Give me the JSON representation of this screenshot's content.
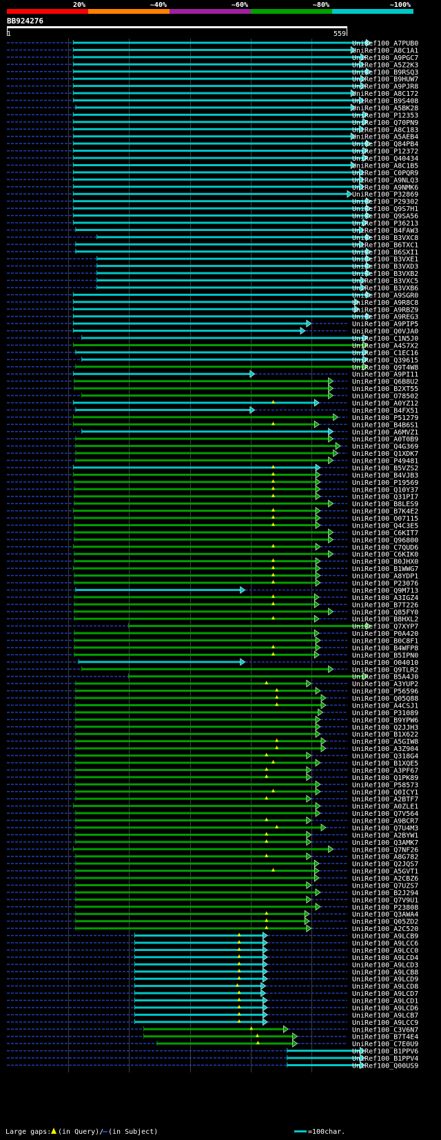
{
  "chart_data": {
    "type": "blast-alignment-overview",
    "query_name": "BB924276",
    "query_start": "1",
    "query_end": "559",
    "query_length": 559,
    "x_range": [
      1,
      559
    ],
    "identity_scale": [
      {
        "label": "20%",
        "color": "#ff0000"
      },
      {
        "label": "~40%",
        "color": "#ff8000"
      },
      {
        "label": "~60%",
        "color": "#a020a0"
      },
      {
        "label": "~80%",
        "color": "#00a000"
      },
      {
        "label": "~100%",
        "color": "#00c8c8"
      }
    ],
    "colors": {
      "background": "#000000",
      "cyan": "#00c8c8",
      "green": "#00a000",
      "dash": "#2040c0",
      "grid": "#404040",
      "gap": "#f0f000"
    },
    "legend": {
      "gaps_prefix": "Large gaps: ",
      "gaps_query": "(in Query)/",
      "gaps_subject": " (in Subject)",
      "scale_label": "=100char."
    },
    "hits": [
      {
        "name": "UniRef100_A7PUB0",
        "start": 108,
        "end": 591,
        "color": "cyan"
      },
      {
        "name": "UniRef100_A8C1A1",
        "start": 108,
        "end": 566,
        "color": "cyan"
      },
      {
        "name": "UniRef100_A9PGC7",
        "start": 108,
        "end": 582,
        "color": "cyan"
      },
      {
        "name": "UniRef100_A5Z2K3",
        "start": 108,
        "end": 580,
        "color": "cyan"
      },
      {
        "name": "UniRef100_B9RSQ3",
        "start": 108,
        "end": 591,
        "color": "cyan"
      },
      {
        "name": "UniRef100_B9HUW7",
        "start": 108,
        "end": 582,
        "color": "cyan"
      },
      {
        "name": "UniRef100_A9PJR8",
        "start": 108,
        "end": 582,
        "color": "cyan"
      },
      {
        "name": "UniRef100_A8C172",
        "start": 108,
        "end": 566,
        "color": "cyan"
      },
      {
        "name": "UniRef100_B9S408",
        "start": 108,
        "end": 580,
        "color": "cyan"
      },
      {
        "name": "UniRef100_A5BK28",
        "start": 112,
        "end": 566,
        "color": "cyan"
      },
      {
        "name": "UniRef100_P12353",
        "start": 108,
        "end": 586,
        "color": "cyan"
      },
      {
        "name": "UniRef100_Q70PN9",
        "start": 108,
        "end": 586,
        "color": "cyan"
      },
      {
        "name": "UniRef100_A8C183",
        "start": 108,
        "end": 580,
        "color": "cyan"
      },
      {
        "name": "UniRef100_A5AEB4",
        "start": 108,
        "end": 566,
        "color": "cyan"
      },
      {
        "name": "UniRef100_Q84PB4",
        "start": 108,
        "end": 591,
        "color": "cyan"
      },
      {
        "name": "UniRef100_P12372",
        "start": 108,
        "end": 586,
        "color": "cyan"
      },
      {
        "name": "UniRef100_Q40434",
        "start": 108,
        "end": 586,
        "color": "cyan"
      },
      {
        "name": "UniRef100_A8C1B5",
        "start": 108,
        "end": 566,
        "color": "cyan"
      },
      {
        "name": "UniRef100_C0PQR9",
        "start": 108,
        "end": 580,
        "color": "cyan"
      },
      {
        "name": "UniRef100_A9NLQ3",
        "start": 108,
        "end": 580,
        "color": "cyan"
      },
      {
        "name": "UniRef100_A9NMK6",
        "start": 108,
        "end": 580,
        "color": "cyan"
      },
      {
        "name": "UniRef100_P32869",
        "start": 108,
        "end": 560,
        "color": "cyan"
      },
      {
        "name": "UniRef100_P29302",
        "start": 108,
        "end": 591,
        "color": "cyan"
      },
      {
        "name": "UniRef100_Q9S7H1",
        "start": 108,
        "end": 591,
        "color": "cyan"
      },
      {
        "name": "UniRef100_Q9SA56",
        "start": 108,
        "end": 591,
        "color": "cyan"
      },
      {
        "name": "UniRef100_P36213",
        "start": 108,
        "end": 586,
        "color": "cyan"
      },
      {
        "name": "UniRef100_B4FAW3",
        "start": 112,
        "end": 580,
        "color": "cyan"
      },
      {
        "name": "UniRef100_B3VXC8",
        "start": 147,
        "end": 591,
        "color": "cyan"
      },
      {
        "name": "UniRef100_B6TXC1",
        "start": 112,
        "end": 580,
        "color": "cyan"
      },
      {
        "name": "UniRef100_B6SXI1",
        "start": 112,
        "end": 591,
        "color": "cyan"
      },
      {
        "name": "UniRef100_B3VXE1",
        "start": 147,
        "end": 591,
        "color": "cyan"
      },
      {
        "name": "UniRef100_B3VXD3",
        "start": 147,
        "end": 591,
        "color": "cyan"
      },
      {
        "name": "UniRef100_B3VXB2",
        "start": 147,
        "end": 591,
        "color": "cyan"
      },
      {
        "name": "UniRef100_B3VXC5",
        "start": 147,
        "end": 582,
        "color": "cyan"
      },
      {
        "name": "UniRef100_B3VXB6",
        "start": 147,
        "end": 582,
        "color": "cyan"
      },
      {
        "name": "UniRef100_A9SGR0",
        "start": 108,
        "end": 591,
        "color": "cyan"
      },
      {
        "name": "UniRef100_A9R8C8",
        "start": 108,
        "end": 572,
        "color": "cyan"
      },
      {
        "name": "UniRef100_A9RBZ9",
        "start": 108,
        "end": 572,
        "color": "cyan"
      },
      {
        "name": "UniRef100_A9REG3",
        "start": 108,
        "end": 591,
        "color": "cyan"
      },
      {
        "name": "UniRef100_A9PIP5",
        "start": 108,
        "end": 493,
        "color": "cyan"
      },
      {
        "name": "UniRef100_Q0VJA0",
        "start": 108,
        "end": 483,
        "color": "cyan"
      },
      {
        "name": "UniRef100_C1N5J0",
        "start": 122,
        "end": 586,
        "color": "cyan"
      },
      {
        "name": "UniRef100_A4S7X2",
        "start": 108,
        "end": 586,
        "color": "green"
      },
      {
        "name": "UniRef100_C1EC16",
        "start": 112,
        "end": 586,
        "color": "cyan"
      },
      {
        "name": "UniRef100_Q39615",
        "start": 122,
        "end": 586,
        "color": "cyan"
      },
      {
        "name": "UniRef100_Q9T4W8",
        "start": 112,
        "end": 586,
        "color": "green"
      },
      {
        "name": "UniRef100_A9PI11",
        "start": 108,
        "end": 400,
        "color": "cyan"
      },
      {
        "name": "UniRef100_Q6B8U2",
        "start": 110,
        "end": 529,
        "color": "green"
      },
      {
        "name": "UniRef100_B2XT55",
        "start": 110,
        "end": 529,
        "color": "green"
      },
      {
        "name": "UniRef100_O78502",
        "start": 122,
        "end": 529,
        "color": "green"
      },
      {
        "name": "UniRef100_A0YZ12",
        "start": 108,
        "end": 506,
        "color": "cyan",
        "gap": 437
      },
      {
        "name": "UniRef100_B4FX51",
        "start": 112,
        "end": 400,
        "color": "cyan"
      },
      {
        "name": "UniRef100_P51279",
        "start": 108,
        "end": 537,
        "color": "green"
      },
      {
        "name": "UniRef100_B4B6S1",
        "start": 108,
        "end": 506,
        "color": "green",
        "gap": 437
      },
      {
        "name": "UniRef100_A6MVZ1",
        "start": 122,
        "end": 529,
        "color": "cyan"
      },
      {
        "name": "UniRef100_A0T0B9",
        "start": 112,
        "end": 529,
        "color": "green"
      },
      {
        "name": "UniRef100_Q4G369",
        "start": 112,
        "end": 541,
        "color": "green"
      },
      {
        "name": "UniRef100_Q1XDK7",
        "start": 112,
        "end": 537,
        "color": "green"
      },
      {
        "name": "UniRef100_P49481",
        "start": 112,
        "end": 529,
        "color": "green"
      },
      {
        "name": "UniRef100_B5VZS2",
        "start": 108,
        "end": 508,
        "color": "cyan",
        "gap": 437
      },
      {
        "name": "UniRef100_B4VJB3",
        "start": 108,
        "end": 508,
        "color": "green",
        "gap": 437
      },
      {
        "name": "UniRef100_P19569",
        "start": 110,
        "end": 508,
        "color": "green",
        "gap": 437
      },
      {
        "name": "UniRef100_Q10Y37",
        "start": 110,
        "end": 508,
        "color": "green",
        "gap": 437
      },
      {
        "name": "UniRef100_Q31PI7",
        "start": 110,
        "end": 508,
        "color": "green",
        "gap": 437
      },
      {
        "name": "UniRef100_B8LES9",
        "start": 110,
        "end": 529,
        "color": "green"
      },
      {
        "name": "UniRef100_B7K4E2",
        "start": 108,
        "end": 508,
        "color": "green",
        "gap": 437
      },
      {
        "name": "UniRef100_O07115",
        "start": 110,
        "end": 508,
        "color": "green",
        "gap": 437
      },
      {
        "name": "UniRef100_Q4C3E5",
        "start": 110,
        "end": 508,
        "color": "green",
        "gap": 437
      },
      {
        "name": "UniRef100_C6KIT7",
        "start": 110,
        "end": 529,
        "color": "green"
      },
      {
        "name": "UniRef100_Q96800",
        "start": 110,
        "end": 529,
        "color": "green"
      },
      {
        "name": "UniRef100_C7QUD6",
        "start": 108,
        "end": 508,
        "color": "green",
        "gap": 437
      },
      {
        "name": "UniRef100_C6KIK0",
        "start": 110,
        "end": 529,
        "color": "green"
      },
      {
        "name": "UniRef100_B0JHX0",
        "start": 110,
        "end": 508,
        "color": "green",
        "gap": 437
      },
      {
        "name": "UniRef100_B1WWG7",
        "start": 108,
        "end": 508,
        "color": "green",
        "gap": 437
      },
      {
        "name": "UniRef100_A8YDP1",
        "start": 110,
        "end": 508,
        "color": "green",
        "gap": 437
      },
      {
        "name": "UniRef100_P23076",
        "start": 110,
        "end": 508,
        "color": "green",
        "gap": 437
      },
      {
        "name": "UniRef100_Q9M713",
        "start": 112,
        "end": 384,
        "color": "cyan"
      },
      {
        "name": "UniRef100_A3IGZ4",
        "start": 110,
        "end": 506,
        "color": "green",
        "gap": 437
      },
      {
        "name": "UniRef100_B7T226",
        "start": 110,
        "end": 506,
        "color": "green",
        "gap": 437
      },
      {
        "name": "UniRef100_Q85FY0",
        "start": 110,
        "end": 529,
        "color": "green"
      },
      {
        "name": "UniRef100_B8HXL2",
        "start": 110,
        "end": 506,
        "color": "green",
        "gap": 437
      },
      {
        "name": "UniRef100_Q7XYP7",
        "start": 199,
        "end": 591,
        "color": "green"
      },
      {
        "name": "UniRef100_P0A420",
        "start": 110,
        "end": 506,
        "color": "green"
      },
      {
        "name": "UniRef100_B0C8F1",
        "start": 110,
        "end": 508,
        "color": "green"
      },
      {
        "name": "UniRef100_B4WFP8",
        "start": 110,
        "end": 508,
        "color": "green",
        "gap": 437
      },
      {
        "name": "UniRef100_B5IPN0",
        "start": 110,
        "end": 506,
        "color": "green",
        "gap": 437
      },
      {
        "name": "UniRef100_O04010",
        "start": 117,
        "end": 384,
        "color": "cyan"
      },
      {
        "name": "UniRef100_Q9TLR2",
        "start": 122,
        "end": 529,
        "color": "green"
      },
      {
        "name": "UniRef100_B5A4J0",
        "start": 199,
        "end": 586,
        "color": "green"
      },
      {
        "name": "UniRef100_A3YUP2",
        "start": 112,
        "end": 493,
        "color": "green",
        "gap": 426
      },
      {
        "name": "UniRef100_P56596",
        "start": 112,
        "end": 508,
        "color": "green",
        "gap": 443
      },
      {
        "name": "UniRef100_Q05Q88",
        "start": 112,
        "end": 517,
        "color": "green",
        "gap": 443
      },
      {
        "name": "UniRef100_A4CSJ1",
        "start": 112,
        "end": 517,
        "color": "green",
        "gap": 443
      },
      {
        "name": "UniRef100_P31089",
        "start": 112,
        "end": 512,
        "color": "green"
      },
      {
        "name": "UniRef100_B9YPW6",
        "start": 112,
        "end": 508,
        "color": "green"
      },
      {
        "name": "UniRef100_Q2JJH3",
        "start": 112,
        "end": 508,
        "color": "green"
      },
      {
        "name": "UniRef100_B1X622",
        "start": 112,
        "end": 508,
        "color": "green"
      },
      {
        "name": "UniRef100_A5GIW8",
        "start": 112,
        "end": 517,
        "color": "green",
        "gap": 443
      },
      {
        "name": "UniRef100_A3Z904",
        "start": 112,
        "end": 517,
        "color": "green",
        "gap": 443
      },
      {
        "name": "UniRef100_Q318G4",
        "start": 112,
        "end": 493,
        "color": "green",
        "gap": 426
      },
      {
        "name": "UniRef100_B1XQE5",
        "start": 112,
        "end": 508,
        "color": "green",
        "gap": 437
      },
      {
        "name": "UniRef100_A3PF67",
        "start": 112,
        "end": 493,
        "color": "green",
        "gap": 426
      },
      {
        "name": "UniRef100_Q1PK89",
        "start": 112,
        "end": 493,
        "color": "green",
        "gap": 426
      },
      {
        "name": "UniRef100_P58573",
        "start": 112,
        "end": 508,
        "color": "green"
      },
      {
        "name": "UniRef100_Q0ICY1",
        "start": 112,
        "end": 508,
        "color": "green",
        "gap": 437
      },
      {
        "name": "UniRef100_A2BTF7",
        "start": 112,
        "end": 493,
        "color": "green",
        "gap": 426
      },
      {
        "name": "UniRef100_A0ZLE1",
        "start": 108,
        "end": 508,
        "color": "green"
      },
      {
        "name": "UniRef100_Q7V564",
        "start": 112,
        "end": 508,
        "color": "green"
      },
      {
        "name": "UniRef100_A9BCR7",
        "start": 112,
        "end": 493,
        "color": "green",
        "gap": 426
      },
      {
        "name": "UniRef100_Q7U4M3",
        "start": 112,
        "end": 517,
        "color": "green",
        "gap": 443
      },
      {
        "name": "UniRef100_A2BYW1",
        "start": 112,
        "end": 493,
        "color": "green",
        "gap": 426
      },
      {
        "name": "UniRef100_Q3AMK7",
        "start": 112,
        "end": 493,
        "color": "green",
        "gap": 426
      },
      {
        "name": "UniRef100_Q7NF26",
        "start": 108,
        "end": 529,
        "color": "green"
      },
      {
        "name": "UniRef100_A8G782",
        "start": 112,
        "end": 493,
        "color": "green",
        "gap": 426
      },
      {
        "name": "UniRef100_Q2JQS7",
        "start": 112,
        "end": 506,
        "color": "green"
      },
      {
        "name": "UniRef100_A5GVT1",
        "start": 112,
        "end": 506,
        "color": "green",
        "gap": 437
      },
      {
        "name": "UniRef100_A2CBZ6",
        "start": 112,
        "end": 506,
        "color": "green"
      },
      {
        "name": "UniRef100_Q7UZS7",
        "start": 112,
        "end": 493,
        "color": "green"
      },
      {
        "name": "UniRef100_B2J294",
        "start": 112,
        "end": 508,
        "color": "green"
      },
      {
        "name": "UniRef100_Q7V9U1",
        "start": 112,
        "end": 493,
        "color": "green"
      },
      {
        "name": "UniRef100_P23808",
        "start": 112,
        "end": 508,
        "color": "green"
      },
      {
        "name": "UniRef100_Q3AWA4",
        "start": 112,
        "end": 490,
        "color": "green",
        "gap": 426
      },
      {
        "name": "UniRef100_Q05ZD2",
        "start": 112,
        "end": 490,
        "color": "green",
        "gap": 426
      },
      {
        "name": "UniRef100_A2C520",
        "start": 112,
        "end": 493,
        "color": "green",
        "gap": 426
      },
      {
        "name": "UniRef100_A9LCB9",
        "start": 209,
        "end": 421,
        "color": "cyan",
        "gap": 381
      },
      {
        "name": "UniRef100_A9LCC6",
        "start": 209,
        "end": 421,
        "color": "cyan",
        "gap": 381
      },
      {
        "name": "UniRef100_A9LCC0",
        "start": 209,
        "end": 421,
        "color": "cyan",
        "gap": 381
      },
      {
        "name": "UniRef100_A9LCD4",
        "start": 209,
        "end": 421,
        "color": "cyan",
        "gap": 381
      },
      {
        "name": "UniRef100_A9LCD3",
        "start": 209,
        "end": 421,
        "color": "cyan",
        "gap": 381
      },
      {
        "name": "UniRef100_A9LCB8",
        "start": 209,
        "end": 421,
        "color": "cyan",
        "gap": 381
      },
      {
        "name": "UniRef100_A9LCD9",
        "start": 209,
        "end": 421,
        "color": "cyan",
        "gap": 381
      },
      {
        "name": "UniRef100_A9LCD8",
        "start": 209,
        "end": 418,
        "color": "cyan",
        "gap": 378
      },
      {
        "name": "UniRef100_A9LCD7",
        "start": 209,
        "end": 418,
        "color": "cyan",
        "gap": 381
      },
      {
        "name": "UniRef100_A9LCD1",
        "start": 209,
        "end": 421,
        "color": "cyan",
        "gap": 381
      },
      {
        "name": "UniRef100_A9LCD6",
        "start": 209,
        "end": 421,
        "color": "cyan",
        "gap": 381
      },
      {
        "name": "UniRef100_A9LCB7",
        "start": 209,
        "end": 421,
        "color": "cyan",
        "gap": 381
      },
      {
        "name": "UniRef100_A9LCC9",
        "start": 209,
        "end": 421,
        "color": "cyan",
        "gap": 381
      },
      {
        "name": "UniRef100_C3V6N7",
        "start": 224,
        "end": 455,
        "color": "green",
        "gap": 401
      },
      {
        "name": "UniRef100_B7T4E4",
        "start": 224,
        "end": 470,
        "color": "green",
        "gap": 411
      },
      {
        "name": "UniRef100_C7E0U9",
        "start": 246,
        "end": 470,
        "color": "green",
        "gap": 412
      },
      {
        "name": "UniRef100_B1PPV6",
        "start": 460,
        "end": 581,
        "color": "cyan"
      },
      {
        "name": "UniRef100_B1PPV4",
        "start": 460,
        "end": 581,
        "color": "cyan"
      },
      {
        "name": "UniRef100_Q00US9",
        "start": 460,
        "end": 581,
        "color": "cyan"
      }
    ]
  }
}
